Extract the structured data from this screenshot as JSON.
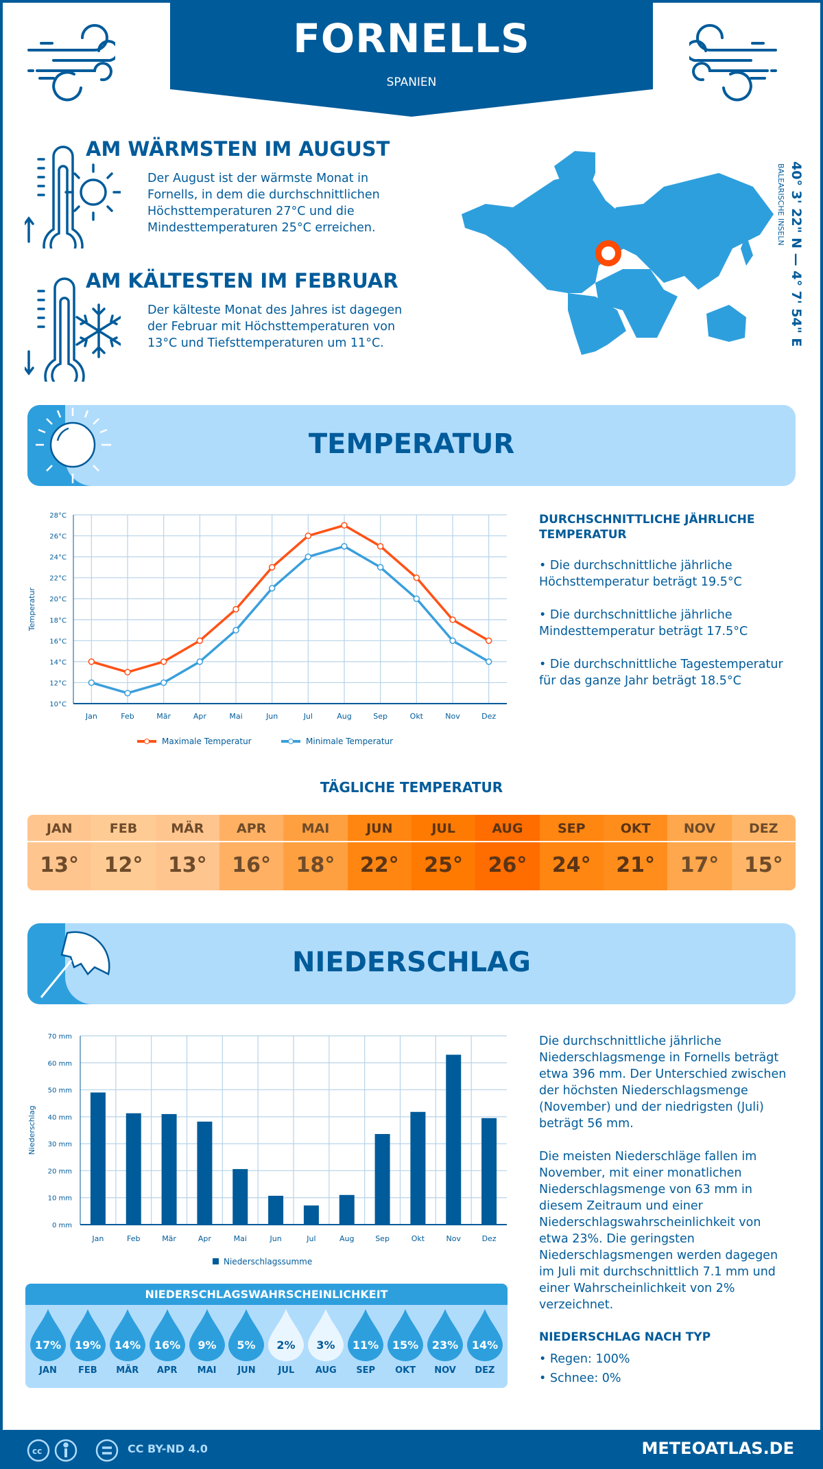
{
  "header": {
    "title": "FORNELLS",
    "subtitle": "SPANIEN"
  },
  "warmest": {
    "title": "AM WÄRMSTEN IM AUGUST",
    "text": "Der August ist der wärmste Monat in Fornells, in dem die durchschnittlichen Höchsttemperaturen 27°C und die Mindesttemperaturen 25°C erreichen."
  },
  "coldest": {
    "title": "AM KÄLTESTEN IM FEBRUAR",
    "text": "Der kälteste Monat des Jahres ist dagegen der Februar mit Höchsttemperaturen von 13°C und Tiefsttemperaturen um 11°C."
  },
  "location": {
    "coords": "40° 3' 22\" N — 4° 7' 54\" E",
    "region": "BALEARISCHE INSELN"
  },
  "temperature_section": {
    "title": "TEMPERATUR",
    "annual_heading": "DURCHSCHNITTLICHE JÄHRLICHE TEMPERATUR",
    "bullets": [
      "• Die durchschnittliche jährliche Höchsttemperatur beträgt 19.5°C",
      "• Die durchschnittliche jährliche Mindesttemperatur beträgt 17.5°C",
      "• Die durchschnittliche Tagestemperatur für das ganze Jahr beträgt 18.5°C"
    ]
  },
  "daily": {
    "title": "TÄGLICHE TEMPERATUR",
    "months": [
      "JAN",
      "FEB",
      "MÄR",
      "APR",
      "MAI",
      "JUN",
      "JUL",
      "AUG",
      "SEP",
      "OKT",
      "NOV",
      "DEZ"
    ],
    "values": [
      "13°",
      "12°",
      "13°",
      "16°",
      "18°",
      "22°",
      "25°",
      "26°",
      "24°",
      "21°",
      "17°",
      "15°"
    ],
    "colors": [
      "#ffc58f",
      "#ffcb94",
      "#ffc58f",
      "#ffb062",
      "#ffa040",
      "#ff8611",
      "#ff7a00",
      "#ff6c00",
      "#ff8611",
      "#ff8d1c",
      "#ffa74c",
      "#ffb668"
    ]
  },
  "precip_section": {
    "title": "NIEDERSCHLAG",
    "text1": "Die durchschnittliche jährliche Niederschlagsmenge in Fornells beträgt etwa 396 mm. Der Unterschied zwischen der höchsten Niederschlagsmenge (November) und der niedrigsten (Juli) beträgt 56 mm.",
    "text2": "Die meisten Niederschläge fallen im November, mit einer monatlichen Niederschlagsmenge von 63 mm in diesem Zeitraum und einer Niederschlagswahrscheinlichkeit von etwa 23%. Die geringsten Niederschlagsmengen werden dagegen im Juli mit durchschnittlich 7.1 mm und einer Wahrscheinlichkeit von 2% verzeichnet.",
    "type_heading": "NIEDERSCHLAG NACH TYP",
    "types": [
      "• Regen: 100%",
      "• Schnee: 0%"
    ]
  },
  "probability": {
    "title": "NIEDERSCHLAGSWAHRSCHEINLICHKEIT",
    "months": [
      "JAN",
      "FEB",
      "MÄR",
      "APR",
      "MAI",
      "JUN",
      "JUL",
      "AUG",
      "SEP",
      "OKT",
      "NOV",
      "DEZ"
    ],
    "values": [
      "17%",
      "19%",
      "14%",
      "16%",
      "9%",
      "5%",
      "2%",
      "3%",
      "11%",
      "15%",
      "23%",
      "14%"
    ]
  },
  "footer": {
    "license": "CC BY-ND 4.0",
    "site": "METEOATLAS.DE"
  },
  "colors": {
    "brand": "#005b9a",
    "accent": "#2e9fdd",
    "light": "#b0dcfc",
    "max": "#ff5216",
    "min": "#3a9fdc"
  },
  "chart_data": [
    {
      "type": "line",
      "ylabel": "Temperatur",
      "ylim": [
        10,
        28
      ],
      "yticks": [
        "10°C",
        "12°C",
        "14°C",
        "16°C",
        "18°C",
        "20°C",
        "22°C",
        "24°C",
        "26°C",
        "28°C"
      ],
      "grid": true,
      "legend": "bottom",
      "categories": [
        "Jan",
        "Feb",
        "Mär",
        "Apr",
        "Mai",
        "Jun",
        "Jul",
        "Aug",
        "Sep",
        "Okt",
        "Nov",
        "Dez"
      ],
      "series": [
        {
          "name": "Maximale Temperatur",
          "values": [
            14,
            13,
            14,
            16,
            19,
            23,
            26,
            27,
            25,
            22,
            18,
            16
          ]
        },
        {
          "name": "Minimale Temperatur",
          "values": [
            12,
            11,
            12,
            14,
            17,
            21,
            24,
            25,
            23,
            20,
            16,
            14
          ]
        }
      ]
    },
    {
      "type": "bar",
      "ylabel": "Niederschlag",
      "ylim": [
        0,
        70
      ],
      "yticks": [
        "0 mm",
        "10 mm",
        "20 mm",
        "30 mm",
        "40 mm",
        "50 mm",
        "60 mm",
        "70 mm"
      ],
      "grid": true,
      "legend": "bottom",
      "categories": [
        "Jan",
        "Feb",
        "Mär",
        "Apr",
        "Mai",
        "Jun",
        "Jul",
        "Aug",
        "Sep",
        "Okt",
        "Nov",
        "Dez"
      ],
      "series": [
        {
          "name": "Niederschlagssumme",
          "values": [
            49,
            41.3,
            41,
            38.2,
            20.6,
            10.7,
            7.1,
            11,
            33.6,
            41.8,
            63,
            39.5
          ]
        }
      ]
    }
  ]
}
